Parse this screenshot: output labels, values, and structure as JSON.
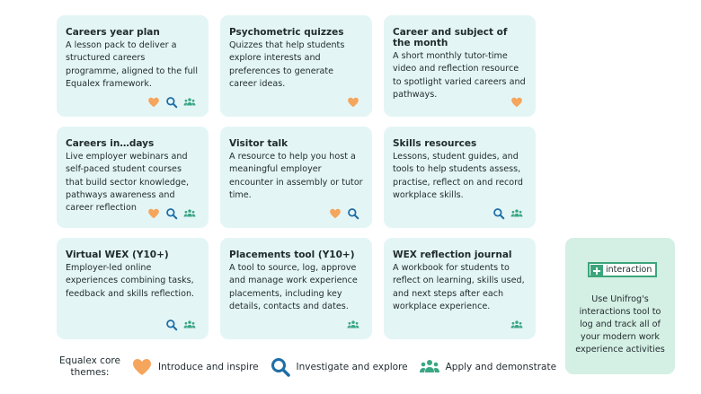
{
  "cards": [
    {
      "title": "Careers year plan",
      "text": "A lesson pack to deliver a structured careers programme, aligned to the full Equalex framework."
    },
    {
      "title": "Psychometric quizzes",
      "text": "Quizzes that help students explore interests and preferences to generate career ideas."
    },
    {
      "title": "Career and subject of the month",
      "text": "A short monthly tutor-time video and reflection resource to spotlight varied careers and pathways."
    },
    {
      "title": "Careers in…days",
      "text": "Live employer webinars and self-paced student courses that build sector knowledge, pathways awareness and career reflection"
    },
    {
      "title": "Visitor talk",
      "text": "A resource to help you host a meaningful employer encounter in assembly or tutor time."
    },
    {
      "title": "Skills resources",
      "text": "Lessons, student guides, and tools to help students assess, practise, reflect on and record workplace skills."
    },
    {
      "title": "Virtual WEX (Y10+)",
      "text": "Employer-led online experiences combining tasks, feedback and skills reflection."
    },
    {
      "title": "Placements tool (Y10+)",
      "text": "A tool to source, log, approve and manage work experience placements, including key details, contacts and dates."
    },
    {
      "title": "WEX reflection journal",
      "text": "A workbook for students to reflect on learning, skills used, and next steps after each workplace experience."
    }
  ],
  "side_panel": {
    "badge": "interaction",
    "text": "Use Unifrog's interactions tool to log and track all of your modern work experience activities"
  },
  "legend": {
    "label": "Equalex core themes:",
    "items": [
      "Introduce and inspire",
      "Investigate and explore",
      "Apply and demonstrate"
    ]
  }
}
